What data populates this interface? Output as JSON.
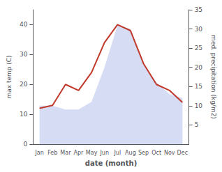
{
  "chart_data": {
    "type": "line",
    "categories": [
      "Jan",
      "Feb",
      "Mar",
      "Apr",
      "May",
      "Jun",
      "Jul",
      "Aug",
      "Sep",
      "Oct",
      "Nov",
      "Dec"
    ],
    "series": [
      {
        "type": "area",
        "axis": "y2",
        "color": "#c8d0f0",
        "values": [
          10,
          10,
          9,
          9,
          11,
          20,
          31,
          30,
          21,
          16,
          13,
          12
        ]
      },
      {
        "type": "line",
        "color": "#c0392b",
        "values": [
          12,
          13,
          20,
          18,
          24,
          34,
          40,
          38,
          27,
          20,
          18,
          14
        ]
      }
    ],
    "xlabel": "date (month)",
    "ylabel": "max temp (C)",
    "y2label": "med. precipitation (kg/m2)",
    "ylim": [
      0,
      45
    ],
    "yticks": [
      0,
      10,
      20,
      30,
      40
    ],
    "y2lim": [
      0,
      35
    ],
    "y2ticks": [
      5,
      10,
      15,
      20,
      25,
      30,
      35
    ],
    "grid": false
  }
}
